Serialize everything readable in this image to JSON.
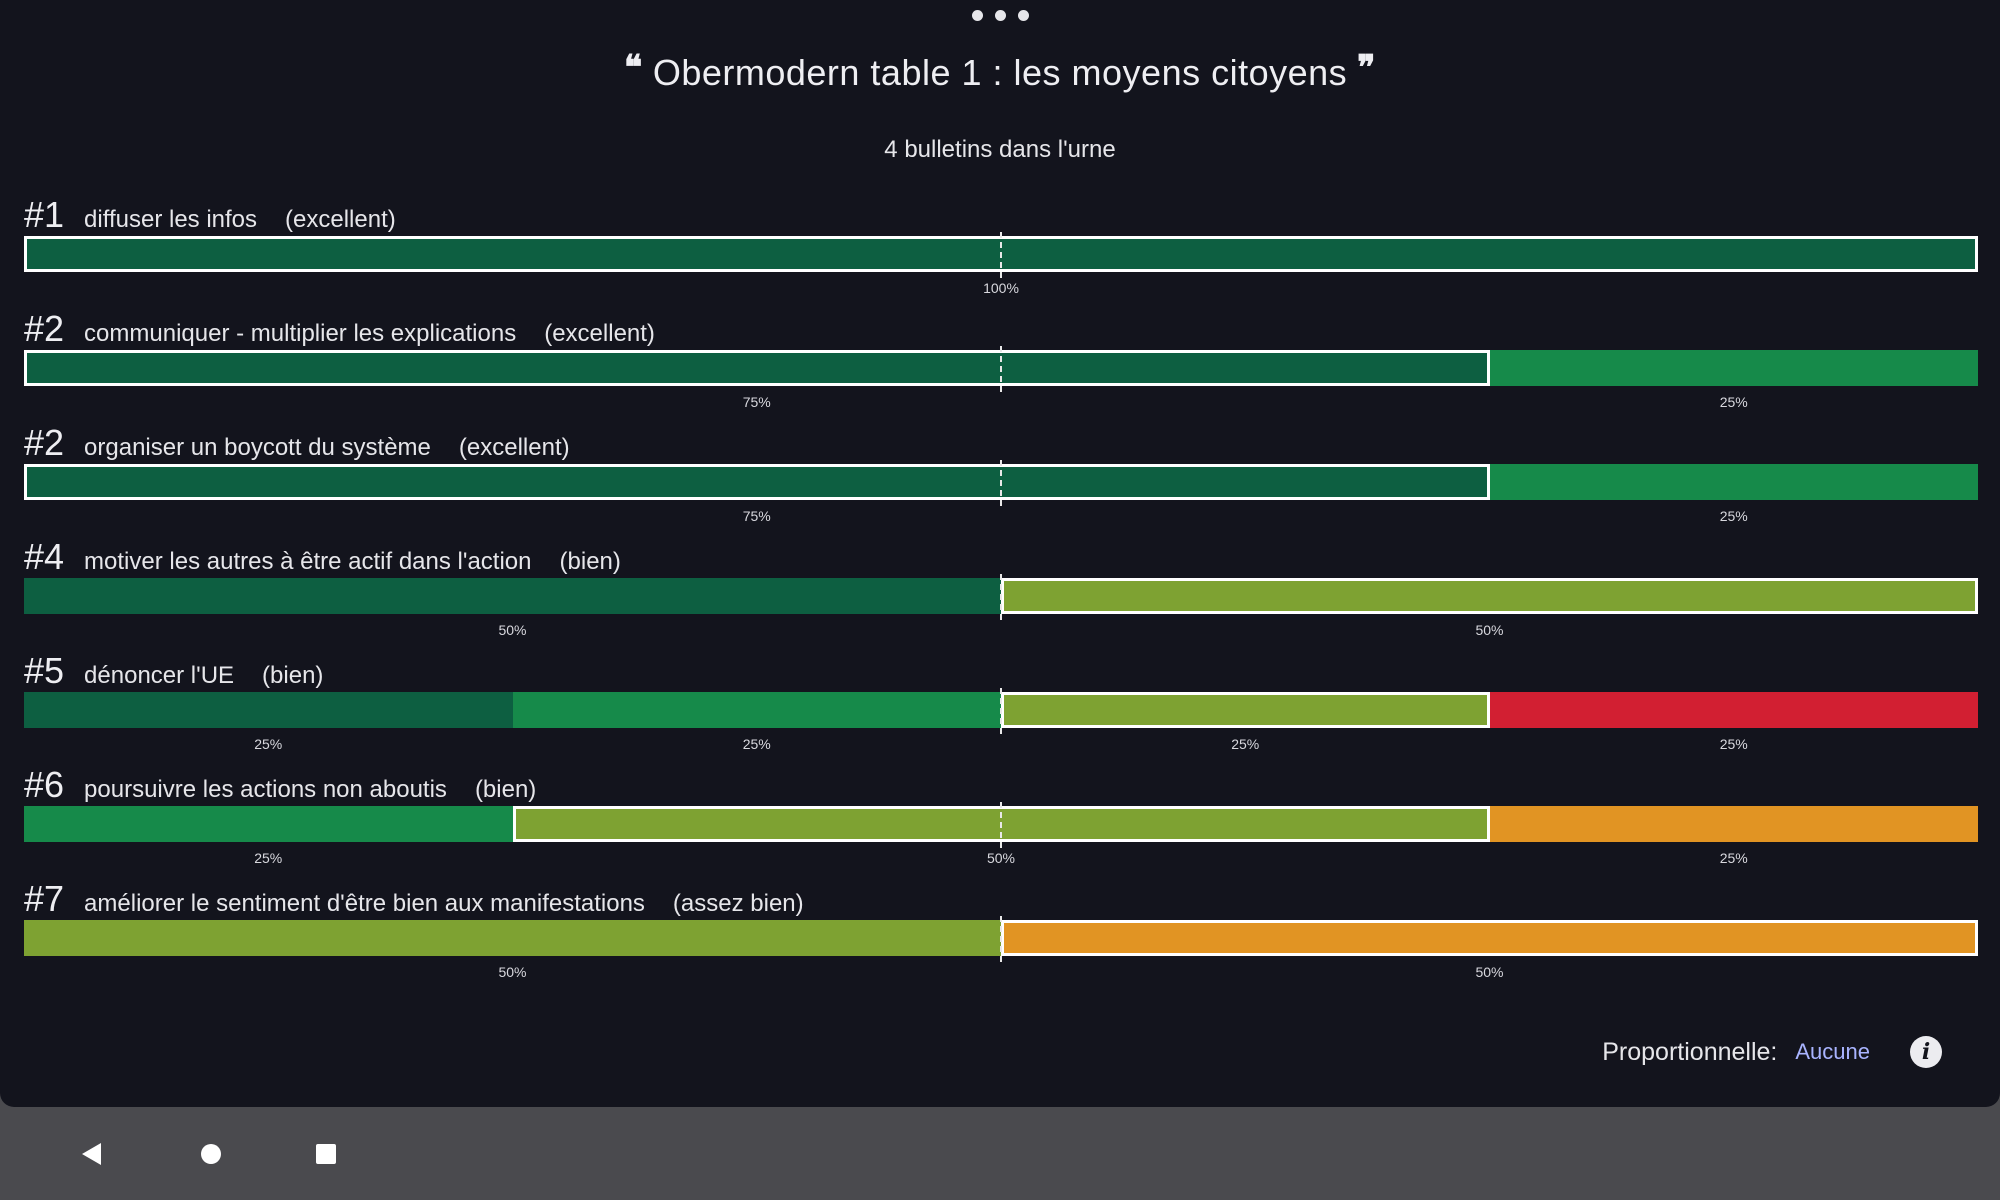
{
  "title": "Obermodern table 1 : les moyens citoyens",
  "ballots": "4 bulletins dans l'urne",
  "colors": {
    "excellent": "#0d5f41",
    "tres_bien": "#168a4a",
    "bien": "#7ea232",
    "assez_bien": "#e19423",
    "insuffisant": "#d21f32",
    "highlight_border": "#ffffff"
  },
  "results": [
    {
      "rank": "#1",
      "label": "diffuser les infos",
      "grade": "(excellent)",
      "segments": [
        {
          "grade": "excellent",
          "share": 100,
          "pct": "100%",
          "highlight": true
        }
      ]
    },
    {
      "rank": "#2",
      "label": "communiquer - multiplier les explications",
      "grade": "(excellent)",
      "segments": [
        {
          "grade": "excellent",
          "share": 75,
          "pct": "75%",
          "highlight": true
        },
        {
          "grade": "tres_bien",
          "share": 25,
          "pct": "25%",
          "highlight": false
        }
      ]
    },
    {
      "rank": "#2",
      "label": "organiser un boycott du système",
      "grade": "(excellent)",
      "segments": [
        {
          "grade": "excellent",
          "share": 75,
          "pct": "75%",
          "highlight": true
        },
        {
          "grade": "tres_bien",
          "share": 25,
          "pct": "25%",
          "highlight": false
        }
      ]
    },
    {
      "rank": "#4",
      "label": "motiver les autres à être actif dans l'action",
      "grade": "(bien)",
      "segments": [
        {
          "grade": "excellent",
          "share": 50,
          "pct": "50%",
          "highlight": false
        },
        {
          "grade": "bien",
          "share": 50,
          "pct": "50%",
          "highlight": true
        }
      ]
    },
    {
      "rank": "#5",
      "label": "dénoncer l'UE",
      "grade": "(bien)",
      "segments": [
        {
          "grade": "excellent",
          "share": 25,
          "pct": "25%",
          "highlight": false
        },
        {
          "grade": "tres_bien",
          "share": 25,
          "pct": "25%",
          "highlight": false
        },
        {
          "grade": "bien",
          "share": 25,
          "pct": "25%",
          "highlight": true
        },
        {
          "grade": "insuffisant",
          "share": 25,
          "pct": "25%",
          "highlight": false
        }
      ]
    },
    {
      "rank": "#6",
      "label": "poursuivre les actions non aboutis",
      "grade": "(bien)",
      "segments": [
        {
          "grade": "tres_bien",
          "share": 25,
          "pct": "25%",
          "highlight": false
        },
        {
          "grade": "bien",
          "share": 50,
          "pct": "50%",
          "highlight": true
        },
        {
          "grade": "assez_bien",
          "share": 25,
          "pct": "25%",
          "highlight": false
        }
      ]
    },
    {
      "rank": "#7",
      "label": "améliorer le sentiment d'être bien aux manifestations",
      "grade": "(assez bien)",
      "segments": [
        {
          "grade": "bien",
          "share": 50,
          "pct": "50%",
          "highlight": false
        },
        {
          "grade": "assez_bien",
          "share": 50,
          "pct": "50%",
          "highlight": true
        }
      ]
    }
  ],
  "footer": {
    "proportional_label": "Proportionnelle:",
    "proportional_value": "Aucune",
    "info_icon": "info-icon"
  },
  "navbar": {
    "back_icon": "back-triangle-icon",
    "home_icon": "home-circle-icon",
    "recents_icon": "recents-square-icon"
  }
}
